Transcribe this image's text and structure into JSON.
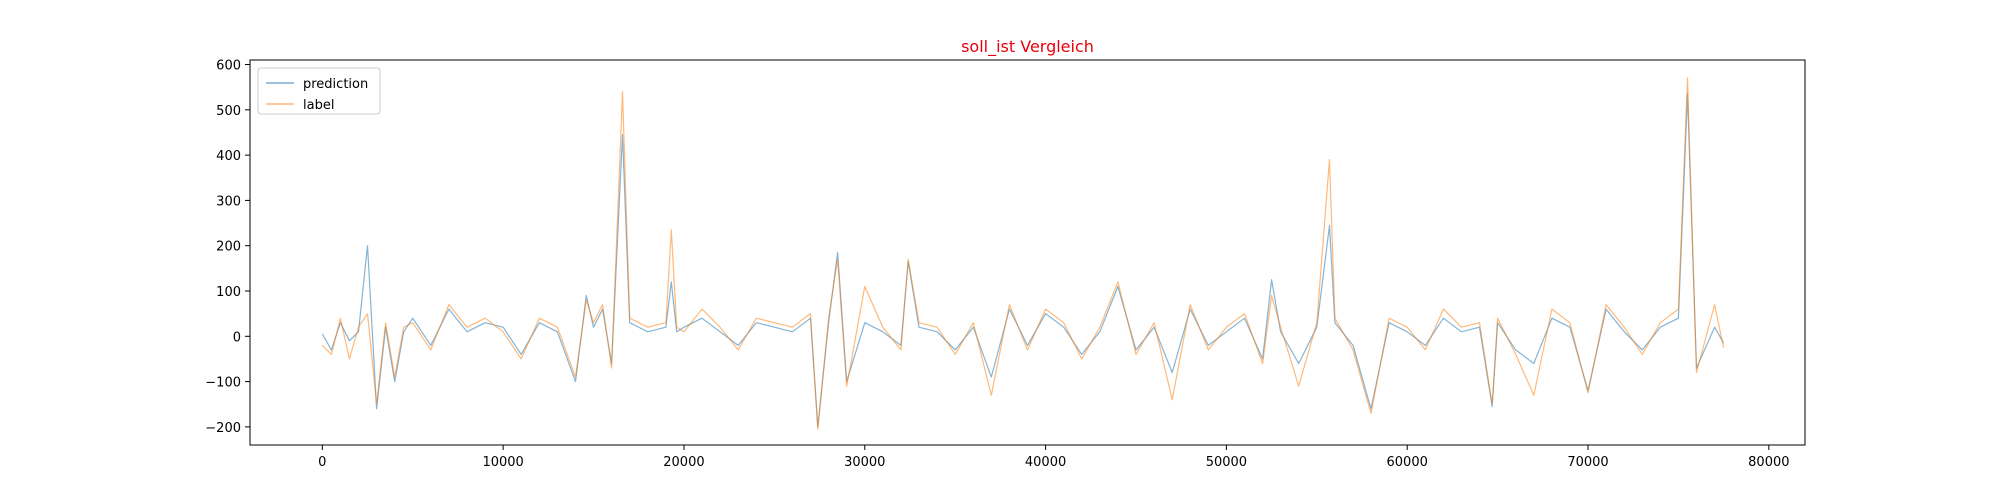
{
  "chart_data": {
    "type": "line",
    "title": "soll_ist Vergleich",
    "title_color": "#e8000b",
    "xlabel": "",
    "ylabel": "",
    "xlim": [
      -4000,
      82000
    ],
    "ylim": [
      -240,
      610
    ],
    "xticks": [
      0,
      10000,
      20000,
      30000,
      40000,
      50000,
      60000,
      70000,
      80000
    ],
    "yticks": [
      -200,
      -100,
      0,
      100,
      200,
      300,
      400,
      500,
      600
    ],
    "grid": false,
    "legend": "top-left",
    "series": [
      {
        "name": "prediction",
        "color": "#1f77b4",
        "x": [
          0,
          500,
          1000,
          1500,
          2000,
          2500,
          3000,
          3500,
          4000,
          4500,
          5000,
          6000,
          7000,
          8000,
          9000,
          10000,
          11000,
          12000,
          13000,
          14000,
          14600,
          15000,
          15500,
          16000,
          16600,
          17000,
          18000,
          19000,
          19300,
          19600,
          20000,
          21000,
          22000,
          23000,
          24000,
          25000,
          26000,
          27000,
          27400,
          28000,
          28500,
          29000,
          30000,
          31000,
          32000,
          32400,
          33000,
          34000,
          35000,
          36000,
          37000,
          38000,
          39000,
          40000,
          41000,
          42000,
          43000,
          44000,
          45000,
          46000,
          47000,
          48000,
          49000,
          50000,
          51000,
          52000,
          52500,
          53000,
          54000,
          55000,
          55700,
          56000,
          57000,
          58000,
          59000,
          60000,
          61000,
          62000,
          63000,
          64000,
          64700,
          65000,
          66000,
          67000,
          68000,
          69000,
          70000,
          71000,
          72000,
          73000,
          74000,
          75000,
          75500,
          76000,
          77000,
          77500
        ],
        "y": [
          5,
          -30,
          30,
          -10,
          10,
          200,
          -160,
          20,
          -100,
          10,
          40,
          -20,
          60,
          10,
          30,
          20,
          -40,
          30,
          10,
          -100,
          90,
          20,
          60,
          -60,
          445,
          30,
          10,
          20,
          120,
          10,
          20,
          40,
          10,
          -20,
          30,
          20,
          10,
          40,
          -200,
          30,
          185,
          -100,
          30,
          10,
          -20,
          165,
          20,
          10,
          -30,
          20,
          -90,
          60,
          -20,
          50,
          20,
          -40,
          10,
          110,
          -30,
          20,
          -80,
          60,
          -20,
          10,
          40,
          -50,
          125,
          10,
          -60,
          20,
          245,
          30,
          -20,
          -160,
          30,
          10,
          -20,
          40,
          10,
          20,
          -155,
          30,
          -30,
          -60,
          40,
          20,
          -120,
          60,
          10,
          -30,
          20,
          40,
          535,
          -70,
          20,
          -15
        ]
      },
      {
        "name": "label",
        "color": "#ff7f0e",
        "x": [
          0,
          500,
          1000,
          1500,
          2000,
          2500,
          3000,
          3500,
          4000,
          4500,
          5000,
          6000,
          7000,
          8000,
          9000,
          10000,
          11000,
          12000,
          13000,
          14000,
          14600,
          15000,
          15500,
          16000,
          16600,
          17000,
          18000,
          19000,
          19300,
          19600,
          20000,
          21000,
          22000,
          23000,
          24000,
          25000,
          26000,
          27000,
          27400,
          28000,
          28500,
          29000,
          30000,
          31000,
          32000,
          32400,
          33000,
          34000,
          35000,
          36000,
          37000,
          38000,
          39000,
          40000,
          41000,
          42000,
          43000,
          44000,
          45000,
          46000,
          47000,
          48000,
          49000,
          50000,
          51000,
          52000,
          52500,
          53000,
          54000,
          55000,
          55700,
          56000,
          57000,
          58000,
          59000,
          60000,
          61000,
          62000,
          63000,
          64000,
          64700,
          65000,
          66000,
          67000,
          68000,
          69000,
          70000,
          71000,
          72000,
          73000,
          74000,
          75000,
          75500,
          76000,
          77000,
          77500
        ],
        "y": [
          -20,
          -40,
          40,
          -50,
          20,
          50,
          -150,
          30,
          -90,
          20,
          30,
          -30,
          70,
          20,
          40,
          10,
          -50,
          40,
          20,
          -90,
          80,
          30,
          70,
          -70,
          540,
          40,
          20,
          30,
          235,
          20,
          10,
          60,
          20,
          -30,
          40,
          30,
          20,
          50,
          -205,
          40,
          170,
          -110,
          110,
          20,
          -30,
          170,
          30,
          20,
          -40,
          30,
          -130,
          70,
          -30,
          60,
          30,
          -50,
          20,
          120,
          -40,
          30,
          -140,
          70,
          -30,
          20,
          50,
          -60,
          90,
          20,
          -110,
          30,
          390,
          40,
          -30,
          -170,
          40,
          20,
          -30,
          60,
          20,
          30,
          -150,
          40,
          -40,
          -130,
          60,
          30,
          -125,
          70,
          20,
          -40,
          30,
          60,
          570,
          -80,
          70,
          -25
        ]
      }
    ]
  }
}
